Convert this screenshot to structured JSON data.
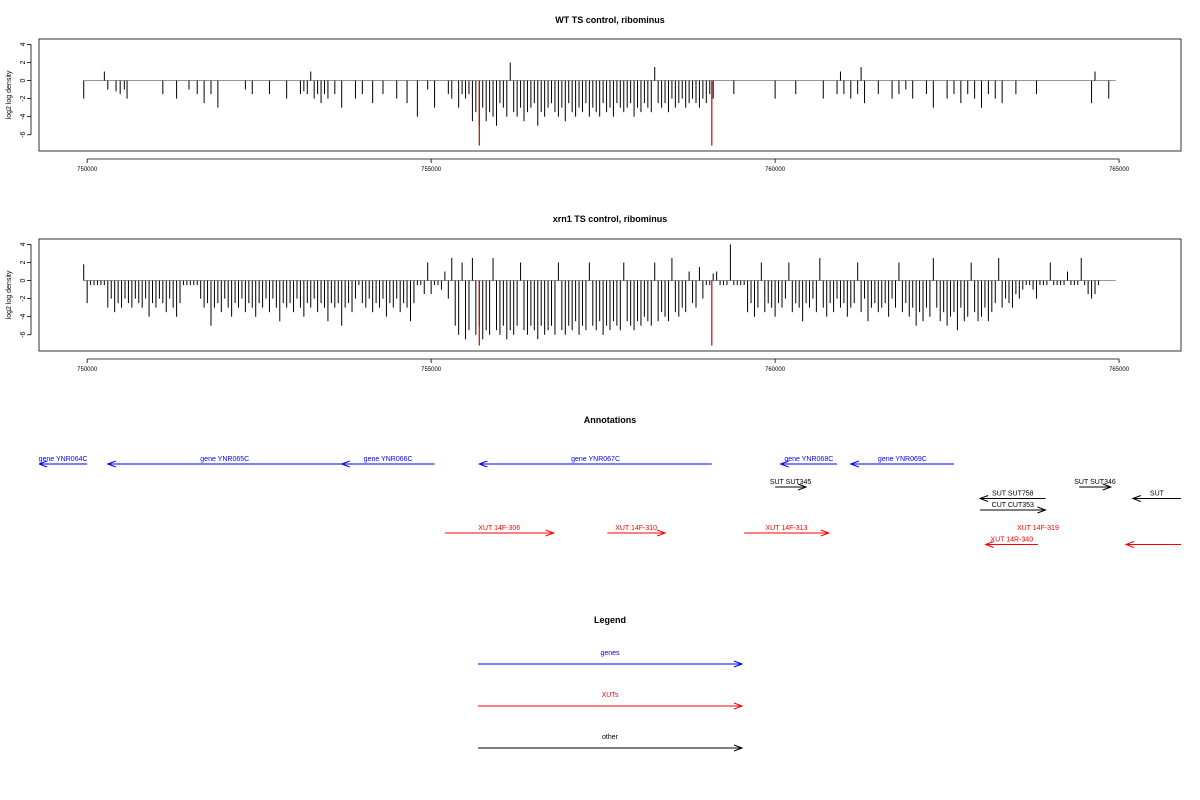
{
  "chart_data": [
    {
      "type": "bar",
      "title": "WT TS control, ribominus",
      "ylabel": "log2 log density",
      "xlabel": "",
      "xlim": [
        749300,
        765900
      ],
      "ylim": [
        -7.8,
        4.6
      ],
      "yticks": [
        4,
        2,
        0,
        -2,
        -4,
        -6
      ],
      "xticks": [
        750000,
        755000,
        760000,
        765000
      ],
      "xtick_labels": [
        "750000",
        "755000",
        "760000",
        "765000"
      ],
      "grid": false,
      "baseline": 0,
      "baseline_range": [
        749950,
        764950
      ],
      "bar_color": "#000000",
      "highlight_color": "#cc0000",
      "series": [
        {
          "x": [
            749950,
            750250,
            750300,
            750420,
            750480,
            750540,
            750580,
            751100,
            751300,
            751480,
            751600,
            751700,
            751800,
            751900,
            752300,
            752400,
            752650,
            752900,
            753100,
            753150,
            753200,
            753250,
            753300,
            753350,
            753400,
            753450,
            753500,
            753600,
            753700,
            753900,
            754000,
            754150,
            754300,
            754500,
            754650,
            754800,
            754950,
            755050,
            755250,
            755300,
            755400,
            755450,
            755500,
            755550,
            755600,
            755650,
            755700,
            755750,
            755800,
            755850,
            755900,
            755950,
            756000,
            756050,
            756100,
            756150,
            756200,
            756250,
            756300,
            756350,
            756400,
            756450,
            756500,
            756550,
            756600,
            756650,
            756700,
            756750,
            756800,
            756850,
            756900,
            756950,
            757000,
            757050,
            757100,
            757150,
            757200,
            757250,
            757300,
            757350,
            757400,
            757450,
            757500,
            757550,
            757600,
            757650,
            757700,
            757750,
            757800,
            757850,
            757900,
            757950,
            758000,
            758050,
            758100,
            758150,
            758200,
            758250,
            758300,
            758350,
            758400,
            758450,
            758500,
            758550,
            758600,
            758650,
            758700,
            758750,
            758800,
            758850,
            758900,
            758950,
            759000,
            759050,
            759100,
            759400,
            760000,
            760300,
            760700,
            760900,
            760950,
            761000,
            761100,
            761200,
            761250,
            761300,
            761500,
            761700,
            761800,
            761900,
            762000,
            762200,
            762300,
            762500,
            762600,
            762700,
            762800,
            762900,
            763000,
            763100,
            763200,
            763300,
            763500,
            763800,
            764600,
            764650,
            764850
          ],
          "y": [
            -2.0,
            1.0,
            -1.0,
            -1.2,
            -1.5,
            -1.0,
            -2.0,
            -1.5,
            -2.0,
            -1.0,
            -1.5,
            -2.5,
            -1.5,
            -3.0,
            -1.0,
            -1.5,
            -1.5,
            -2.0,
            -1.5,
            -1.2,
            -1.5,
            1.0,
            -2.0,
            -1.5,
            -2.5,
            -1.5,
            -2.0,
            -1.5,
            -3.0,
            -2.0,
            -1.5,
            -2.5,
            -1.5,
            -2.0,
            -2.5,
            -4.0,
            -1.0,
            -3.0,
            -1.5,
            -2.0,
            -3.0,
            -1.5,
            -2.0,
            -1.5,
            -4.5,
            -3.5,
            -5.0,
            -3.0,
            -4.5,
            -3.5,
            -4.0,
            -5.0,
            -2.5,
            -3.0,
            -4.0,
            2.0,
            -3.5,
            -4.0,
            -3.0,
            -4.5,
            -3.5,
            -3.0,
            -2.5,
            -5.0,
            -3.5,
            -4.0,
            -3.0,
            -2.5,
            -3.5,
            -4.0,
            -3.0,
            -4.5,
            -2.5,
            -3.5,
            -4.0,
            -3.0,
            -3.5,
            -2.5,
            -4.0,
            -3.0,
            -3.5,
            -4.0,
            -2.5,
            -3.5,
            -3.0,
            -4.0,
            -2.5,
            -3.0,
            -3.5,
            -3.0,
            -2.5,
            -4.0,
            -3.0,
            -3.5,
            -2.5,
            -3.0,
            -3.5,
            1.5,
            -2.5,
            -3.0,
            -2.5,
            -3.5,
            -2.0,
            -3.0,
            -2.5,
            -2.0,
            -3.0,
            -2.5,
            -2.0,
            -2.5,
            -3.0,
            -2.0,
            -2.5,
            -1.5,
            -2.0,
            -1.5,
            -2.0,
            -1.5,
            -2.0,
            -1.5,
            1.0,
            -1.5,
            -2.0,
            -1.5,
            1.5,
            -2.5,
            -1.5,
            -2.0,
            -1.5,
            -1.0,
            -2.0,
            -1.5,
            -3.0,
            -2.0,
            -1.5,
            -2.5,
            -1.5,
            -2.0,
            -3.0,
            -1.5,
            -2.0,
            -2.5,
            -1.5,
            -1.5,
            -2.5,
            1.0,
            -2.0
          ],
          "highlight_x": [
            755700,
            759080
          ],
          "highlight_y": [
            -7.2,
            -7.2
          ]
        }
      ]
    },
    {
      "type": "bar",
      "title": "xrn1 TS control, ribominus",
      "ylabel": "log2 log density",
      "xlabel": "",
      "xlim": [
        749300,
        765900
      ],
      "ylim": [
        -7.8,
        4.6
      ],
      "yticks": [
        4,
        2,
        0,
        -2,
        -4,
        -6
      ],
      "xticks": [
        750000,
        755000,
        760000,
        765000
      ],
      "xtick_labels": [
        "750000",
        "755000",
        "760000",
        "765000"
      ],
      "grid": false,
      "baseline": 0,
      "baseline_range": [
        749950,
        764950
      ],
      "bar_color": "#000000",
      "highlight_color": "#cc0000",
      "series": [
        {
          "x_start": 749950,
          "x_step": 50,
          "y": [
            1.8,
            -2.5,
            -0.5,
            -0.5,
            -0.5,
            -0.5,
            -0.5,
            -3.0,
            -2.0,
            -3.5,
            -2.5,
            -3.0,
            -2.0,
            -2.5,
            -3.0,
            -2.0,
            -2.5,
            -3.0,
            -2.0,
            -4.0,
            -2.5,
            -3.0,
            -2.0,
            -2.5,
            -3.5,
            -2.0,
            -3.0,
            -4.0,
            -2.5,
            -0.5,
            -0.5,
            -0.5,
            -0.5,
            -0.5,
            -2.0,
            -3.0,
            -2.5,
            -5.0,
            -3.0,
            -2.5,
            -3.5,
            -2.0,
            -3.0,
            -4.0,
            -2.5,
            -3.0,
            -2.0,
            -3.5,
            -2.5,
            -3.0,
            -4.0,
            -2.5,
            -3.0,
            -2.0,
            -3.5,
            -2.0,
            -3.0,
            -4.5,
            -2.5,
            -3.0,
            -2.5,
            -3.5,
            -2.0,
            -3.0,
            -4.0,
            -2.5,
            -3.0,
            -2.0,
            -3.5,
            -2.5,
            -3.0,
            -4.5,
            -2.5,
            -3.0,
            -2.5,
            -5.0,
            -3.0,
            -2.5,
            -3.5,
            -2.0,
            -0.5,
            -2.5,
            -3.0,
            -2.0,
            -3.5,
            -2.5,
            -3.0,
            -2.0,
            -4.0,
            -2.5,
            -3.0,
            -2.0,
            -3.5,
            -2.5,
            -3.0,
            -4.5,
            -2.5,
            -0.5,
            -0.5,
            -1.5,
            2.0,
            -1.5,
            -0.5,
            -0.5,
            -1.0,
            1.0,
            -2.0,
            2.5,
            -5.0,
            -6.0,
            2.0,
            -6.5,
            -5.5,
            2.5,
            -6.0,
            -5.0,
            -6.5,
            -5.5,
            -6.0,
            2.5,
            -5.5,
            -6.0,
            -5.0,
            -6.5,
            -5.5,
            -6.0,
            -5.0,
            2.0,
            -5.5,
            -6.0,
            -5.0,
            -5.5,
            -6.5,
            -5.0,
            -6.0,
            -5.5,
            -5.0,
            -6.0,
            2.0,
            -5.5,
            -6.0,
            -5.0,
            -5.5,
            -4.5,
            -6.0,
            -5.0,
            -5.5,
            2.0,
            -5.0,
            -5.5,
            -4.5,
            -6.0,
            -5.0,
            -5.5,
            -4.5,
            -5.0,
            -5.5,
            2.0,
            -4.5,
            -5.0,
            -5.5,
            -4.5,
            -5.0,
            -4.0,
            -4.5,
            -5.0,
            2.0,
            -4.5,
            -3.5,
            -4.0,
            -4.5,
            2.5,
            -3.5,
            -4.0,
            -3.0,
            -3.5,
            1.0,
            -2.5,
            -3.0,
            1.5,
            -2.0,
            -0.5,
            -0.5,
            0.8,
            1.0,
            -0.5,
            -0.5,
            -0.5,
            4.0,
            -0.5,
            -0.5,
            -0.5,
            -0.5,
            -3.5,
            -2.5,
            -4.0,
            -3.0,
            2.0,
            -3.5,
            -2.5,
            -3.0,
            -4.0,
            -2.5,
            -3.0,
            -2.0,
            2.0,
            -3.5,
            -2.5,
            -3.0,
            -4.5,
            -2.5,
            -3.0,
            -2.0,
            -3.5,
            2.5,
            -3.0,
            -4.0,
            -2.5,
            -3.5,
            -2.0,
            -3.0,
            -2.5,
            -4.0,
            -3.0,
            -2.5,
            2.0,
            -3.5,
            -2.0,
            -4.5,
            -3.0,
            -2.5,
            -3.5,
            -3.0,
            -2.5,
            -4.0,
            -2.0,
            -3.0,
            2.0,
            -3.5,
            -2.5,
            -4.0,
            -3.0,
            -5.0,
            -3.5,
            -4.5,
            -3.0,
            -4.0,
            2.5,
            -3.0,
            -4.5,
            -3.5,
            -5.0,
            -4.0,
            -3.5,
            -5.5,
            -3.0,
            -4.5,
            -4.0,
            2.0,
            -3.5,
            -4.5,
            -4.0,
            -3.0,
            -4.5,
            -3.5,
            -2.5,
            2.5,
            -3.0,
            -2.0,
            -2.5,
            -3.0,
            -1.5,
            -2.0,
            -1.0,
            -0.5,
            -0.5,
            -1.0,
            -2.0,
            -0.5,
            -0.5,
            -0.5,
            2.0,
            -0.5,
            -0.5,
            -0.5,
            -0.5,
            1.0,
            -0.5,
            -0.5,
            -0.5,
            2.5,
            -0.5,
            -1.5,
            -2.0,
            -1.5,
            -0.5
          ],
          "highlight_x": [
            755700,
            759080
          ],
          "highlight_y": [
            -7.2,
            -7.2
          ]
        }
      ]
    },
    {
      "type": "annotation-track",
      "title": "Annotations",
      "xlim": [
        749300,
        765900
      ],
      "features": [
        {
          "label": "gene YNR064C",
          "start": 750000,
          "end": 749300,
          "color": "#0000ff",
          "row": 0,
          "label_pos": "above"
        },
        {
          "label": "gene YNR065C",
          "start": 753700,
          "end": 750300,
          "color": "#0000ff",
          "row": 0,
          "label_pos": "above"
        },
        {
          "label": "gene YNR066C",
          "start": 755050,
          "end": 753700,
          "color": "#0000ff",
          "row": 0,
          "label_pos": "above"
        },
        {
          "label": "gene YNR067C",
          "start": 759080,
          "end": 755700,
          "color": "#0000ff",
          "row": 0,
          "label_pos": "above"
        },
        {
          "label": "gene YNR068C",
          "start": 760900,
          "end": 760080,
          "color": "#0000ff",
          "row": 0,
          "label_pos": "above"
        },
        {
          "label": "gene YNR069C",
          "start": 762600,
          "end": 761100,
          "color": "#0000ff",
          "row": 0,
          "label_pos": "above"
        },
        {
          "label": "SUT SUT345",
          "start": 760000,
          "end": 760450,
          "color": "#000000",
          "row": 1,
          "label_pos": "above"
        },
        {
          "label": "SUT SUT346",
          "start": 764420,
          "end": 764880,
          "color": "#000000",
          "row": 1,
          "label_pos": "above"
        },
        {
          "label": "SUT",
          "start": 765900,
          "end": 765200,
          "color": "#000000",
          "row": 1.5,
          "label_pos": "above"
        },
        {
          "label": "SUT SUT758",
          "start": 763930,
          "end": 762980,
          "color": "#000000",
          "row": 1.5,
          "label_pos": "above"
        },
        {
          "label": "CUT CUT353",
          "start": 762980,
          "end": 763930,
          "color": "#000000",
          "row": 2,
          "label_pos": "above"
        },
        {
          "label": "XUT 14F-306",
          "start": 755200,
          "end": 756780,
          "color": "#ff0000",
          "row": 3,
          "label_pos": "above"
        },
        {
          "label": "XUT 14F-310",
          "start": 757560,
          "end": 758400,
          "color": "#ff0000",
          "row": 3,
          "label_pos": "above"
        },
        {
          "label": "XUT 14F-313",
          "start": 759550,
          "end": 760780,
          "color": "#ff0000",
          "row": 3,
          "label_pos": "above"
        },
        {
          "label": "XUT 14F-319",
          "start": 763820,
          "end": 763820,
          "color": "#ff0000",
          "row": 3,
          "label_pos": "above"
        },
        {
          "label": "XUT 14R-340",
          "start": 763820,
          "end": 763060,
          "color": "#ff0000",
          "row": 3.5,
          "label_pos": "above"
        },
        {
          "label": "",
          "start": 765900,
          "end": 765100,
          "color": "#ff0000",
          "row": 3.5,
          "label_pos": "none"
        }
      ]
    }
  ],
  "legend": {
    "title": "Legend",
    "items": [
      {
        "label": "genes",
        "color": "#0000ff"
      },
      {
        "label": "XUTs",
        "color": "#ff0000"
      },
      {
        "label": "other",
        "color": "#000000"
      }
    ]
  }
}
